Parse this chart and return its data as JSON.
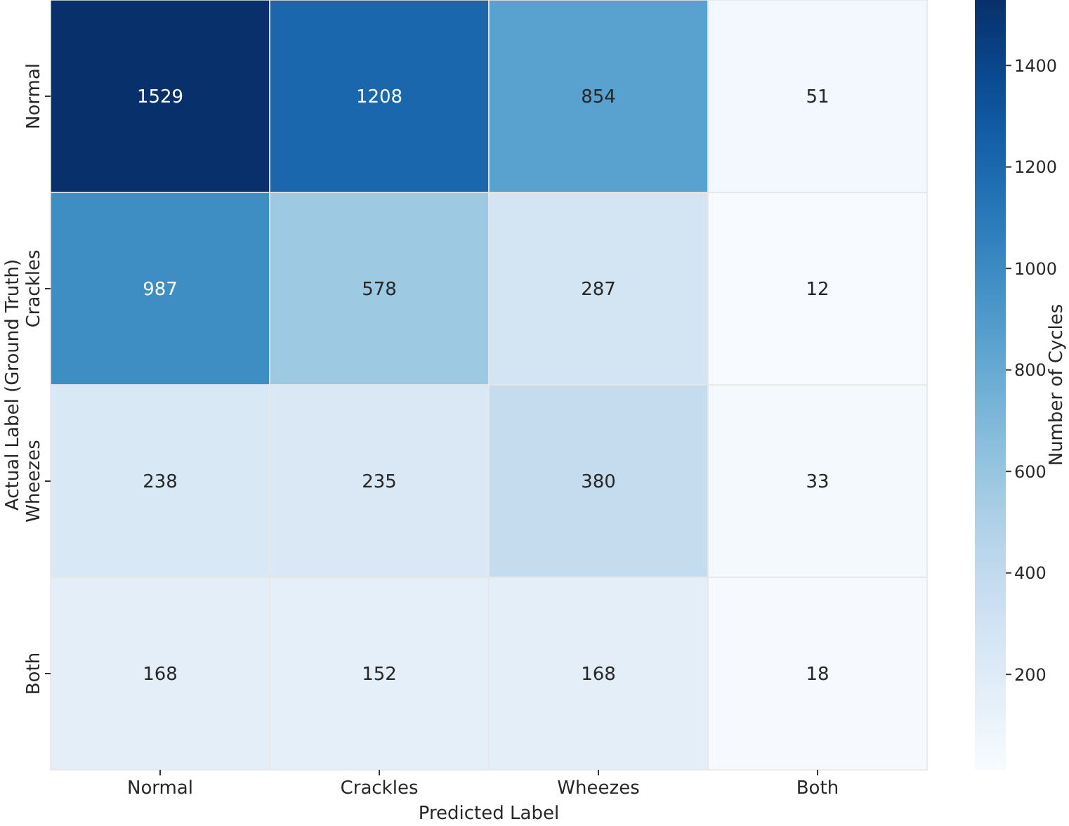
{
  "chart_data": {
    "type": "heatmap",
    "xlabel": "Predicted Label",
    "ylabel": "Actual Label (Ground Truth)",
    "clabel": "Number of Cycles",
    "categories": [
      "Normal",
      "Crackles",
      "Wheezes",
      "Both"
    ],
    "y_categories": [
      "Normal",
      "Crackles",
      "Wheezes",
      "Both"
    ],
    "cells": [
      [
        1529,
        1208,
        854,
        51
      ],
      [
        987,
        578,
        287,
        12
      ],
      [
        238,
        235,
        380,
        33
      ],
      [
        168,
        152,
        168,
        18
      ]
    ],
    "data_labels": true,
    "clim": [
      12,
      1529
    ],
    "cticks": [
      200,
      400,
      600,
      800,
      1000,
      1200,
      1400
    ]
  }
}
